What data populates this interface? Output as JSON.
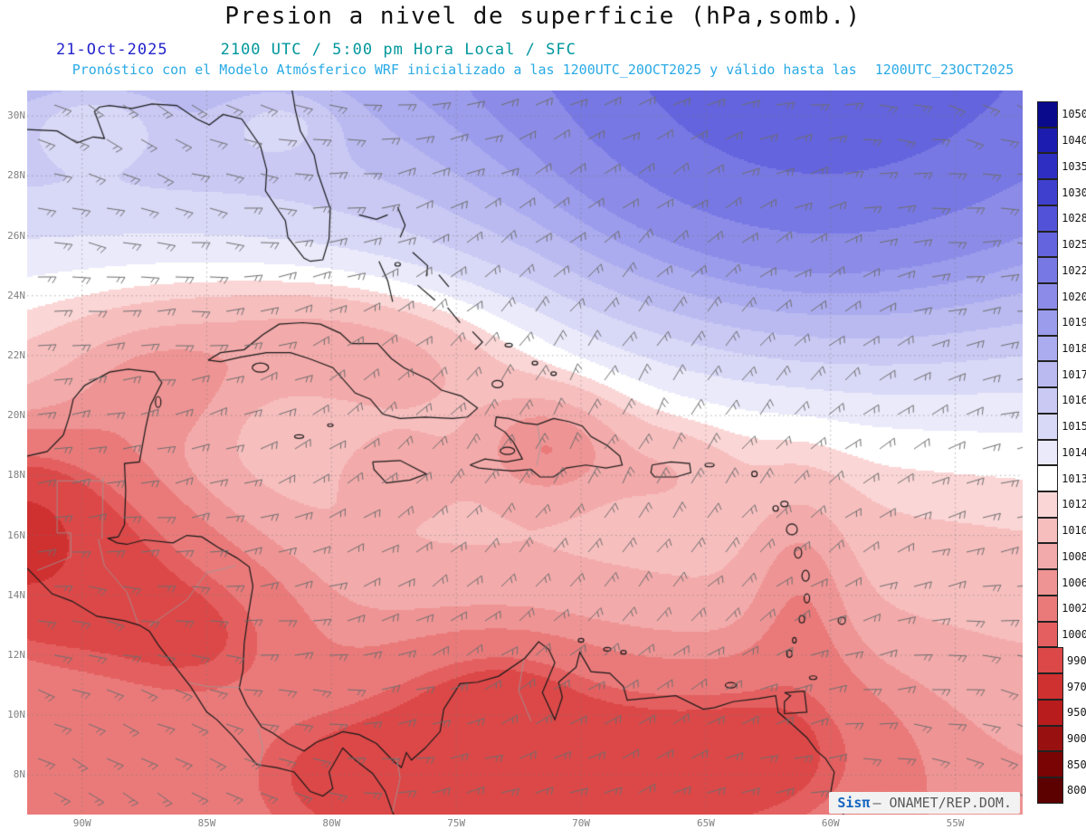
{
  "header": {
    "title": "Presion a nivel de superficie (hPa,somb.)",
    "date": "21-Oct-2025",
    "time_line": "2100 UTC / 5:00 pm Hora Local / SFC",
    "forecast_line": "Pronóstico con el Modelo Atmósferico WRF inicializado a las 1200UTC_20OCT2025 y válido hasta las",
    "valid_until": "1200UTC_23OCT2025",
    "colors": {
      "title": "#111111",
      "date": "#2323cc",
      "time": "#00979c",
      "forecast": "#2aaae6"
    }
  },
  "map": {
    "lat_labels": [
      "30N",
      "28N",
      "26N",
      "24N",
      "22N",
      "20N",
      "18N",
      "16N",
      "14N",
      "12N",
      "10N",
      "8N"
    ],
    "lon_labels": [
      "90W",
      "85W",
      "80W",
      "75W",
      "70W",
      "65W",
      "60W",
      "55W"
    ],
    "axis_color": "#818181",
    "grid_color": "#9a9a9a",
    "barb_color": "#6e6e6e",
    "coast_color": "#1a1a1a"
  },
  "colorbar": {
    "unit": "hPa",
    "values": [
      "1050",
      "1040",
      "1035",
      "1030",
      "1028",
      "1025",
      "1022",
      "1020",
      "1019",
      "1018",
      "1017",
      "1016",
      "1015",
      "1014",
      "1013",
      "1012",
      "1010",
      "1008",
      "1006",
      "1002",
      "1000",
      "990",
      "970",
      "950",
      "900",
      "850",
      "800"
    ],
    "colors": [
      "#0a0a8c",
      "#1c1cb0",
      "#2e2ec2",
      "#4040cf",
      "#5252d8",
      "#6464de",
      "#7878e4",
      "#8c8ce8",
      "#9c9cec",
      "#ababef",
      "#babaf1",
      "#c9c9f4",
      "#d8d8f7",
      "#eaeafb",
      "#ffffff",
      "#fbd6d6",
      "#f7bebe",
      "#f3aaaa",
      "#ef9494",
      "#ea7a7a",
      "#e46060",
      "#dc4848",
      "#cf3030",
      "#b81c1c",
      "#991010",
      "#7a0404",
      "#5c0000"
    ]
  },
  "watermark": {
    "brand": "Sisπ",
    "text": "– ONAMET/REP.DOM."
  }
}
